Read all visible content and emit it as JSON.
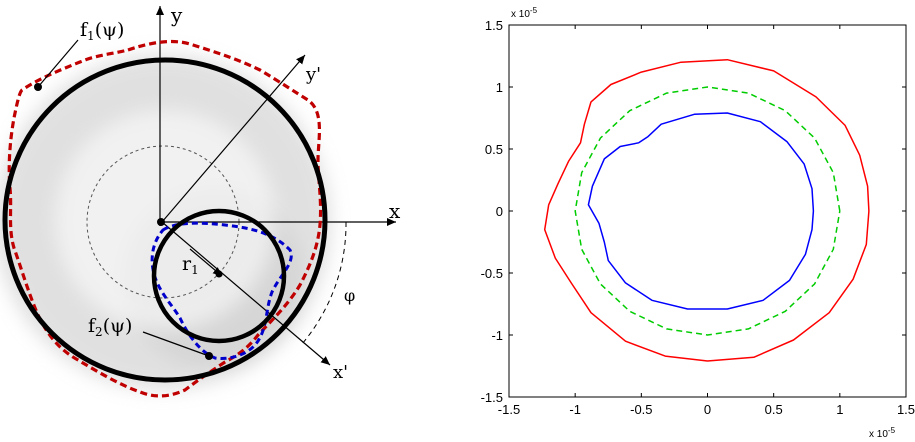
{
  "diagram": {
    "labels": {
      "y": "y",
      "x": "x",
      "y_prime": "y'",
      "x_prime": "x'",
      "f1": "f",
      "f1_sub": "1",
      "f1_arg": "(ψ)",
      "f2": "f",
      "f2_sub": "2",
      "f2_arg": "(ψ)",
      "r1": "r",
      "r1_sub": "1",
      "phi": "φ"
    },
    "colors": {
      "outer_circle": "#000000",
      "inner_circle": "#000000",
      "red_dashed": "#c00000",
      "blue_dashed": "#0000cc",
      "shade": "#cfcfcf",
      "thin_dashed": "#555555"
    }
  },
  "chart_data": {
    "type": "line",
    "xlim": [
      -1.5,
      1.5
    ],
    "ylim": [
      -1.5,
      1.5
    ],
    "x_ticks": [
      -1.5,
      -1,
      -0.5,
      0,
      0.5,
      1,
      1.5
    ],
    "y_ticks": [
      -1.5,
      -1,
      -0.5,
      0,
      0.5,
      1,
      1.5
    ],
    "x_tick_labels": [
      "-1.5",
      "-1",
      "-0.5",
      "0",
      "0.5",
      "1",
      "1.5"
    ],
    "y_tick_labels": [
      "-1.5",
      "-1",
      "-0.5",
      "0",
      "0.5",
      "1",
      "1.5"
    ],
    "x_multiplier": "x 10",
    "x_multiplier_exp": "-5",
    "y_multiplier": "x 10",
    "y_multiplier_exp": "-5",
    "grid": false,
    "legend": "none",
    "series": [
      {
        "color": "#ff0000",
        "style": "solid",
        "points": [
          [
            1.22,
            0
          ],
          [
            1.21,
            0.2
          ],
          [
            1.15,
            0.45
          ],
          [
            1.04,
            0.69
          ],
          [
            0.82,
            0.92
          ],
          [
            0.5,
            1.13
          ],
          [
            0.15,
            1.22
          ],
          [
            -0.2,
            1.2
          ],
          [
            -0.5,
            1.12
          ],
          [
            -0.73,
            1.02
          ],
          [
            -0.88,
            0.88
          ],
          [
            -0.93,
            0.7
          ],
          [
            -0.96,
            0.55
          ],
          [
            -1.05,
            0.4
          ],
          [
            -1.13,
            0.22
          ],
          [
            -1.2,
            0.05
          ],
          [
            -1.23,
            -0.15
          ],
          [
            -1.15,
            -0.38
          ],
          [
            -1.03,
            -0.58
          ],
          [
            -0.88,
            -0.82
          ],
          [
            -0.62,
            -1.05
          ],
          [
            -0.32,
            -1.17
          ],
          [
            0,
            -1.21
          ],
          [
            0.35,
            -1.18
          ],
          [
            0.65,
            -1.04
          ],
          [
            0.92,
            -0.82
          ],
          [
            1.1,
            -0.55
          ],
          [
            1.2,
            -0.27
          ],
          [
            1.22,
            0
          ]
        ]
      },
      {
        "color": "#00cc00",
        "style": "dashed",
        "points": [
          [
            1,
            0
          ],
          [
            0.951,
            0.309
          ],
          [
            0.809,
            0.588
          ],
          [
            0.588,
            0.809
          ],
          [
            0.309,
            0.951
          ],
          [
            0,
            1
          ],
          [
            -0.309,
            0.951
          ],
          [
            -0.588,
            0.809
          ],
          [
            -0.809,
            0.588
          ],
          [
            -0.951,
            0.309
          ],
          [
            -1,
            0
          ],
          [
            -0.951,
            -0.309
          ],
          [
            -0.809,
            -0.588
          ],
          [
            -0.588,
            -0.809
          ],
          [
            -0.309,
            -0.951
          ],
          [
            0,
            -1
          ],
          [
            0.309,
            -0.951
          ],
          [
            0.588,
            -0.809
          ],
          [
            0.809,
            -0.588
          ],
          [
            0.951,
            -0.309
          ],
          [
            1,
            0
          ]
        ]
      },
      {
        "color": "#0000ff",
        "style": "solid",
        "points": [
          [
            0.8,
            0
          ],
          [
            0.79,
            0.18
          ],
          [
            0.73,
            0.38
          ],
          [
            0.6,
            0.56
          ],
          [
            0.4,
            0.72
          ],
          [
            0.15,
            0.79
          ],
          [
            -0.1,
            0.78
          ],
          [
            -0.35,
            0.7
          ],
          [
            -0.45,
            0.6
          ],
          [
            -0.52,
            0.55
          ],
          [
            -0.66,
            0.52
          ],
          [
            -0.78,
            0.42
          ],
          [
            -0.87,
            0.2
          ],
          [
            -0.9,
            0.05
          ],
          [
            -0.82,
            -0.1
          ],
          [
            -0.78,
            -0.25
          ],
          [
            -0.75,
            -0.4
          ],
          [
            -0.62,
            -0.58
          ],
          [
            -0.42,
            -0.72
          ],
          [
            -0.15,
            -0.79
          ],
          [
            0.15,
            -0.79
          ],
          [
            0.42,
            -0.72
          ],
          [
            0.62,
            -0.56
          ],
          [
            0.74,
            -0.35
          ],
          [
            0.79,
            -0.15
          ],
          [
            0.8,
            0
          ]
        ]
      }
    ]
  }
}
